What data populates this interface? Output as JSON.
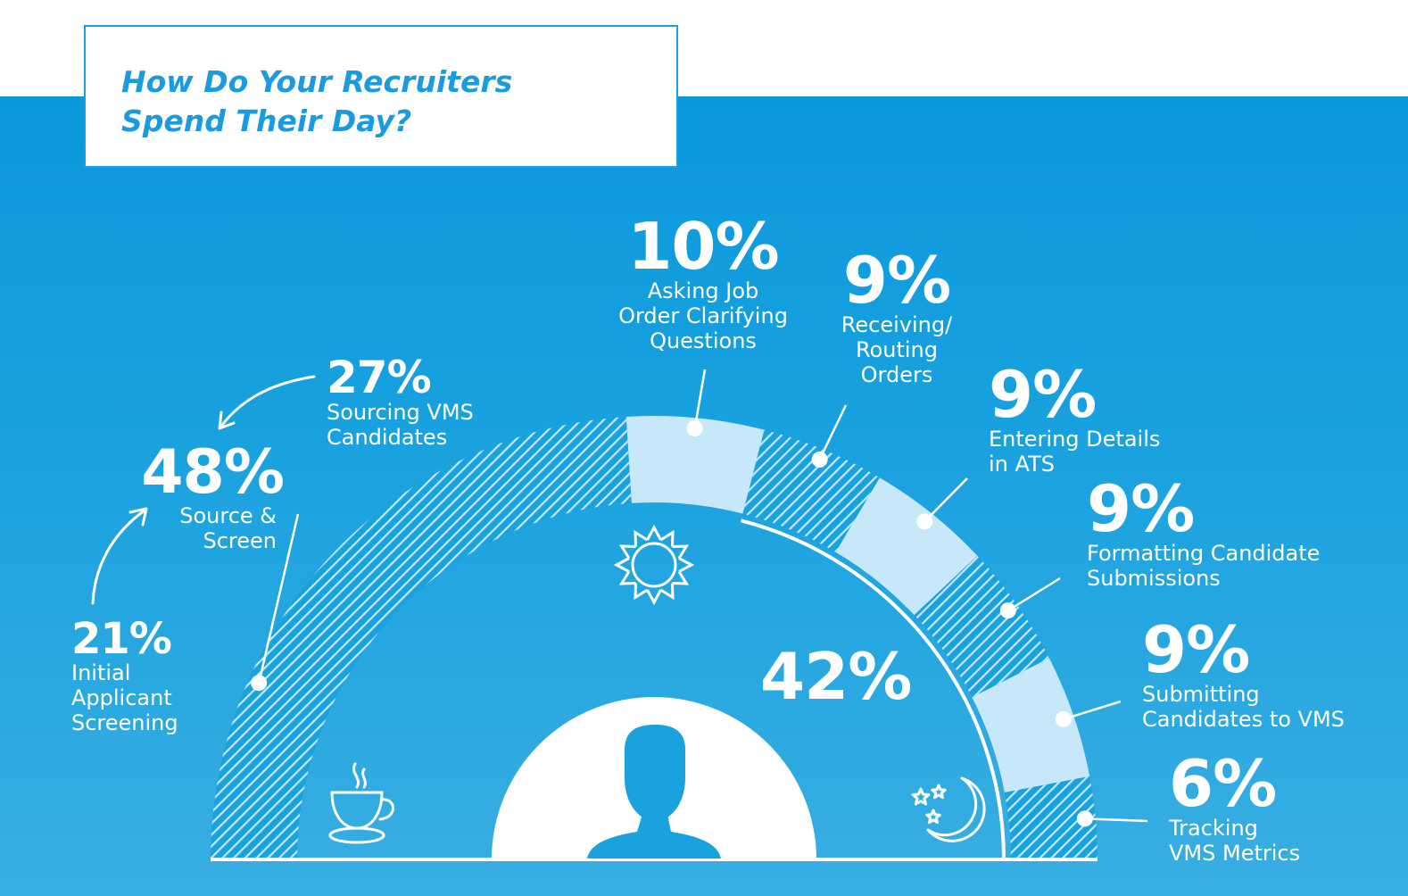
{
  "title": "How Do Your Recruiters\nSpend Their Day?",
  "colors": {
    "background": "#1aa2df",
    "light_segment": "#c6e8f8",
    "hatch": "#ffffff",
    "title": "#1a9be0"
  },
  "icons": [
    "coffee-icon",
    "sun-icon",
    "moon-stars-icon",
    "person-silhouette-icon"
  ],
  "chart_data": {
    "type": "pie",
    "layout": "semicircle",
    "segments": [
      {
        "value": 27,
        "label": "Sourcing VMS\nCandidates",
        "style": "hatched"
      },
      {
        "value": 10,
        "label": "Asking Job\nOrder Clarifying\nQuestions",
        "style": "solid"
      },
      {
        "value": 9,
        "label": "Receiving/\nRouting\nOrders",
        "style": "hatched"
      },
      {
        "value": 9,
        "label": "Entering Details\nin ATS",
        "style": "solid"
      },
      {
        "value": 9,
        "label": "Formatting Candidate\nSubmissions",
        "style": "hatched"
      },
      {
        "value": 9,
        "label": "Submitting\nCandidates to VMS",
        "style": "solid"
      },
      {
        "value": 6,
        "label": "Tracking\nVMS Metrics",
        "style": "hatched"
      }
    ],
    "groups": [
      {
        "value": 48,
        "label": "Source &\nScreen"
      },
      {
        "value": 21,
        "label": "Initial\nApplicant\nScreening"
      },
      {
        "value": 42,
        "label": ""
      }
    ]
  }
}
